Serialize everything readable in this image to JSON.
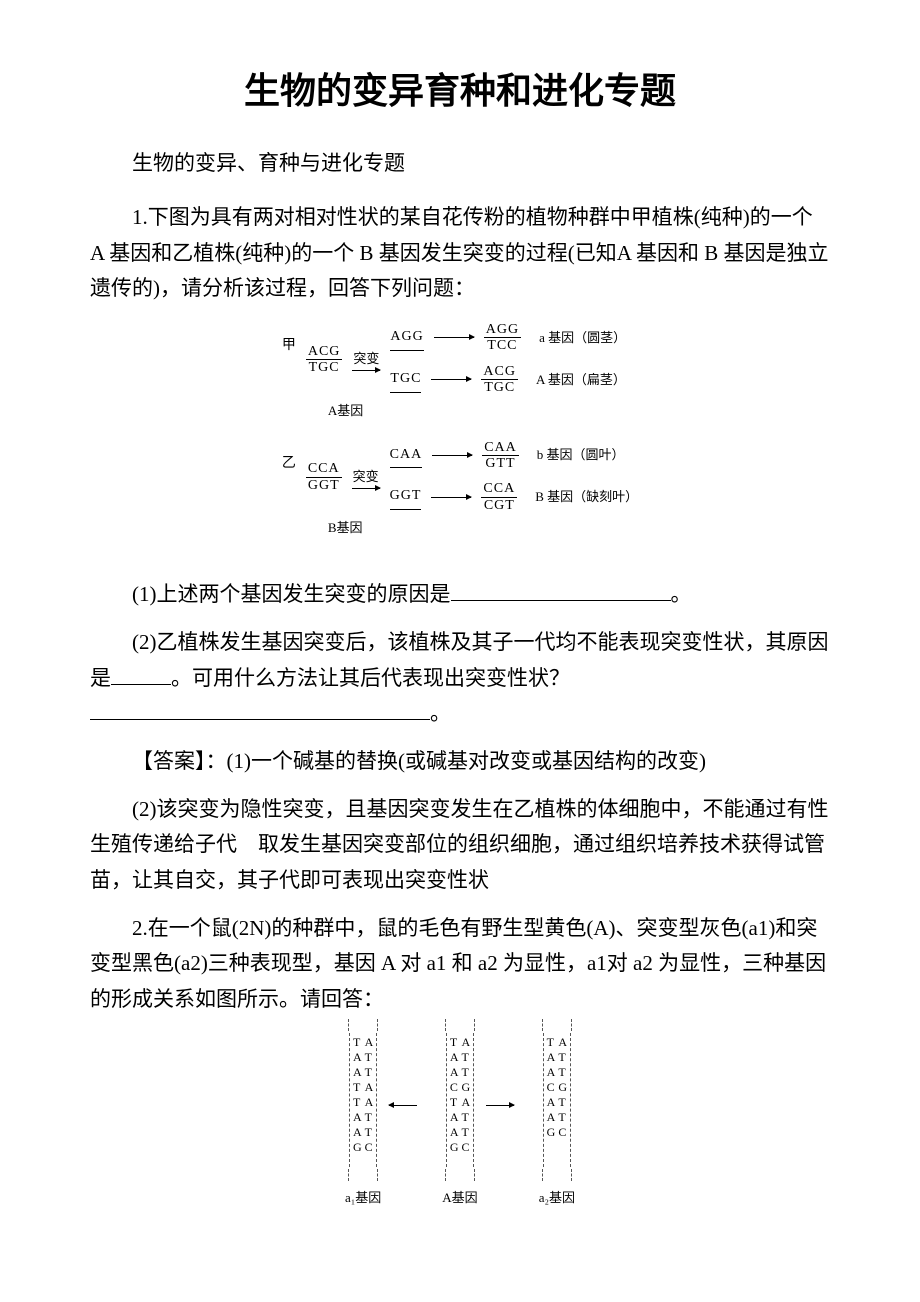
{
  "title": "生物的变异育种和进化专题",
  "subtitle": "生物的变异、育种与进化专题",
  "q1": {
    "intro": "1.下图为具有两对相对性状的某自花传粉的植物种群中甲植株(纯种)的一个 A 基因和乙植株(纯种)的一个 B 基因发生突变的过程(已知A 基因和 B 基因是独立遗传的)，请分析该过程，回答下列问题：",
    "diagram": {
      "jia_label": "甲",
      "yi_label": "乙",
      "mutation_label": "突变",
      "gene_a_label": "A基因",
      "gene_b_label": "B基因",
      "row1": {
        "start_num": "ACG",
        "start_den": "TGC",
        "mid1": "AGG",
        "mid2": "TGC",
        "end1_num": "AGG",
        "end1_den": "TCC",
        "end2_num": "ACG",
        "end2_den": "TGC",
        "label1": "a 基因（圆茎）",
        "label2": "A 基因（扁茎）"
      },
      "row2": {
        "start_num": "CCA",
        "start_den": "GGT",
        "mid1": "CAA",
        "mid2": "GGT",
        "end1_num": "CAA",
        "end1_den": "GTT",
        "end2_num": "CCA",
        "end2_den": "CGT",
        "label1": "b 基因（圆叶）",
        "label2": "B 基因（缺刻叶）"
      }
    },
    "part1": "(1)上述两个基因发生突变的原因是",
    "part1_end": "。",
    "part2": "(2)乙植株发生基因突变后，该植株及其子一代均不能表现突变性状，其原因是",
    "part2_mid": "。可用什么方法让其后代表现出突变性状？",
    "part2_end": "。",
    "answer_label": "【答案】：(1)一个碱基的替换(或碱基对改变或基因结构的改变)",
    "answer2": "(2)该突变为隐性突变，且基因突变发生在乙植株的体细胞中，不能通过有性生殖传递给子代　取发生基因突变部位的组织细胞，通过组织培养技术获得试管苗，让其自交，其子代即可表现出突变性状"
  },
  "q2": {
    "intro": "2.在一个鼠(2N)的种群中，鼠的毛色有野生型黄色(A)、突变型灰色(a1)和突变型黑色(a2)三种表现型，基因 A 对 a1 和 a2 为显性，a1对 a2 为显性，三种基因的形成关系如图所示。请回答：",
    "diagram": {
      "a1_label": "a₁基因",
      "a_big_label": "A基因",
      "a2_label": "a₂基因",
      "seq_a1_left": "TAATTAAG",
      "seq_a1_right": "ATTAATTC",
      "seq_A_left": "TAACTAAG",
      "seq_A_right": "ATTGATTC",
      "seq_a2_left": "TAACAAG",
      "seq_a2_right": "ATTGTTC"
    }
  }
}
